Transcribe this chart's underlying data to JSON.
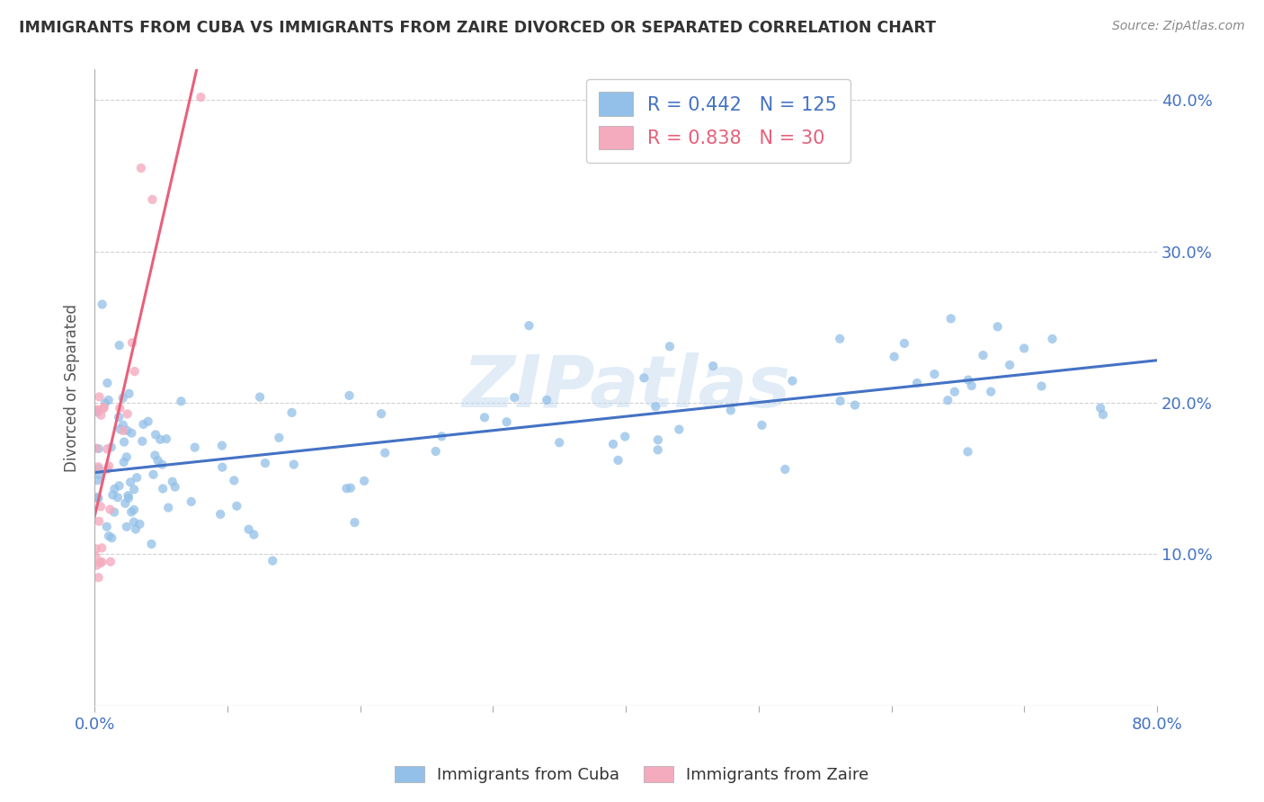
{
  "title": "IMMIGRANTS FROM CUBA VS IMMIGRANTS FROM ZAIRE DIVORCED OR SEPARATED CORRELATION CHART",
  "source": "Source: ZipAtlas.com",
  "ylabel": "Divorced or Separated",
  "xlim": [
    0.0,
    0.8
  ],
  "ylim": [
    0.0,
    0.42
  ],
  "xtick_vals": [
    0.0,
    0.1,
    0.2,
    0.3,
    0.4,
    0.5,
    0.6,
    0.7,
    0.8
  ],
  "ytick_vals": [
    0.0,
    0.1,
    0.2,
    0.3,
    0.4
  ],
  "background_color": "#ffffff",
  "watermark_text": "ZIPatlas",
  "cuba_color": "#92C0E8",
  "zaire_color": "#F4ABBE",
  "cuba_line_color": "#4472C4",
  "zaire_line_color": "#E8607A",
  "cuba_R": 0.442,
  "cuba_N": 125,
  "zaire_R": 0.838,
  "zaire_N": 30,
  "legend_label_color": "#4472C4",
  "grid_color": "#CCCCCC",
  "axis_color": "#AAAAAA",
  "title_color": "#333333",
  "source_color": "#888888",
  "tick_label_color": "#4472C4"
}
